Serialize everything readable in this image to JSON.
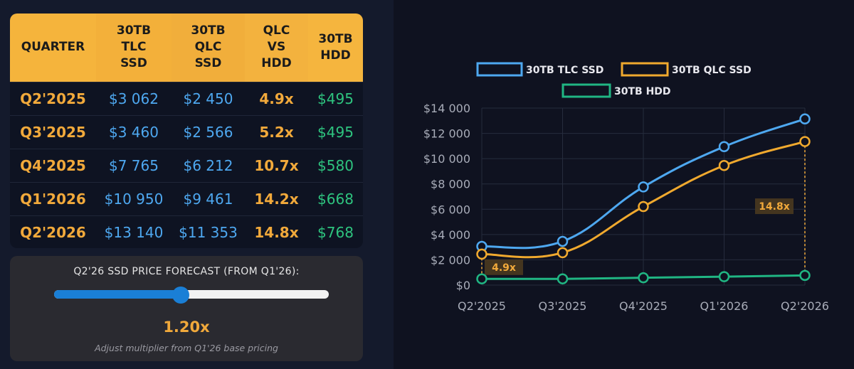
{
  "table": {
    "headers": [
      [
        "QUARTER"
      ],
      [
        "30TB",
        "TLC",
        "SSD"
      ],
      [
        "30TB",
        "QLC",
        "SSD"
      ],
      [
        "QLC",
        "VS",
        "HDD"
      ],
      [
        "30TB",
        "HDD"
      ]
    ],
    "rows": [
      {
        "quarter": "Q2'2025",
        "tlc": "$3 062",
        "qlc": "$2 450",
        "ratio": "4.9x",
        "hdd": "$495"
      },
      {
        "quarter": "Q3'2025",
        "tlc": "$3 460",
        "qlc": "$2 566",
        "ratio": "5.2x",
        "hdd": "$495"
      },
      {
        "quarter": "Q4'2025",
        "tlc": "$7 765",
        "qlc": "$6 212",
        "ratio": "10.7x",
        "hdd": "$580"
      },
      {
        "quarter": "Q1'2026",
        "tlc": "$10 950",
        "qlc": "$9 461",
        "ratio": "14.2x",
        "hdd": "$668"
      },
      {
        "quarter": "Q2'2026",
        "tlc": "$13 140",
        "qlc": "$11 353",
        "ratio": "14.8x",
        "hdd": "$768"
      }
    ]
  },
  "forecast": {
    "title": "Q2'26 SSD PRICE FORECAST (FROM Q1'26):",
    "slider_fraction": 0.46,
    "value": "1.20x",
    "note": "Adjust multiplier from Q1'26 base pricing"
  },
  "colors": {
    "tlc": "#4ea8f0",
    "qlc": "#f0a92e",
    "hdd": "#20b683",
    "accent": "#f1a93b"
  },
  "chart_data": {
    "type": "line",
    "categories": [
      "Q2'2025",
      "Q3'2025",
      "Q4'2025",
      "Q1'2026",
      "Q2'2026"
    ],
    "series": [
      {
        "name": "30TB TLC SSD",
        "values": [
          3062,
          3460,
          7765,
          10950,
          13140
        ]
      },
      {
        "name": "30TB QLC SSD",
        "values": [
          2450,
          2566,
          6212,
          9461,
          11353
        ]
      },
      {
        "name": "30TB HDD",
        "values": [
          495,
          495,
          580,
          668,
          768
        ]
      }
    ],
    "ylim": [
      0,
      14000
    ],
    "yticks": [
      "$0",
      "$2 000",
      "$4 000",
      "$6 000",
      "$8 000",
      "$10 000",
      "$12 000",
      "$14 000"
    ],
    "annotations": [
      {
        "label": "4.9x",
        "category": "Q2'2025"
      },
      {
        "label": "14.8x",
        "category": "Q2'2026"
      }
    ],
    "title": "",
    "xlabel": "",
    "ylabel": "",
    "grid": true,
    "legend": "top-center"
  }
}
